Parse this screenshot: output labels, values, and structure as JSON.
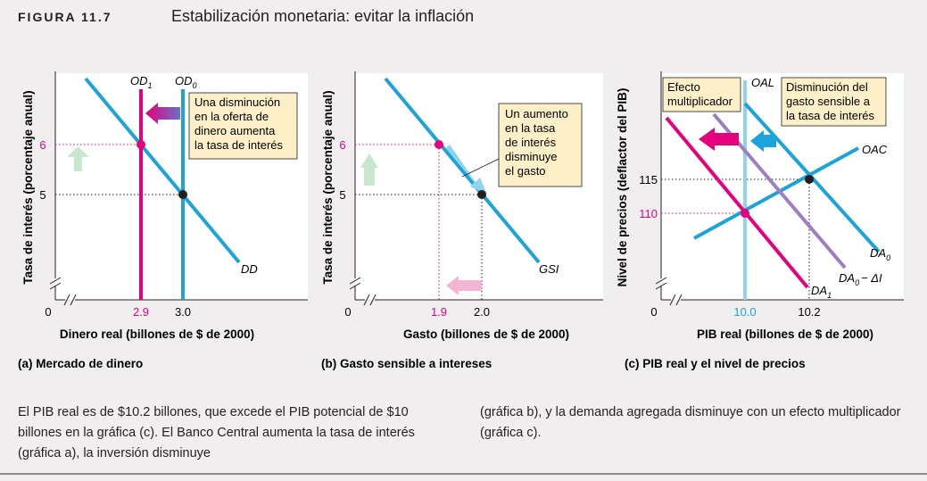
{
  "figure": {
    "label": "FIGURA 11.7",
    "title": "Estabilización monetaria: evitar la inflación"
  },
  "caption_left": "El PIB real es de $10.2 billones, que excede el PIB potencial de $10 billones en la gráfica (c). El Banco Central aumenta la tasa de interés (gráfica a), la inversión disminuye",
  "caption_right": "(gráfica b), y la demanda agregada disminuye con un efecto multiplicador (gráfica c).",
  "colors": {
    "blue": "#1ba3dc",
    "magenta": "#e5007e",
    "purple": "#9b7fc0",
    "light_blue": "#8fd3ef",
    "green_arrow": "#c9e7cf",
    "pink_arrow": "#f4b4d4",
    "callout_fill": "#fdf0c8",
    "point_black": "#231f20"
  },
  "chart_data": [
    {
      "type": "line",
      "panel_label": "(a) Mercado de dinero",
      "xlabel": "Dinero real (billones de $ de 2000)",
      "ylabel": "Tasa de interés (porcentaje anual)",
      "axis_break": true,
      "origin_label": "0",
      "x_ticks": [
        "2.9",
        "3.0"
      ],
      "y_ticks": [
        "6",
        "5"
      ],
      "series": [
        {
          "name": "DD",
          "points": [
            [
              2.88,
              8.6
            ],
            [
              3.15,
              1.8
            ]
          ]
        },
        {
          "name": "OD1",
          "label": "OD",
          "subscript": "1",
          "x": 2.9
        },
        {
          "name": "OD0",
          "label": "OD",
          "subscript": "0",
          "x": 3.0
        }
      ],
      "highlighted_points": [
        {
          "x": 2.9,
          "y": 6,
          "color": "magenta"
        },
        {
          "x": 3.0,
          "y": 5,
          "color": "black"
        }
      ],
      "annotation": "Una disminución en la oferta de dinero aumenta la tasa de interés"
    },
    {
      "type": "line",
      "panel_label": "(b) Gasto sensible a intereses",
      "xlabel": "Gasto (billones de $ de 2000)",
      "ylabel": "Tasa de interés (porcentaje anual)",
      "axis_break": true,
      "origin_label": "0",
      "x_ticks": [
        "1.9",
        "2.0"
      ],
      "y_ticks": [
        "6",
        "5"
      ],
      "series": [
        {
          "name": "GSI",
          "points": [
            [
              1.65,
              8.6
            ],
            [
              2.35,
              2.0
            ]
          ]
        }
      ],
      "highlighted_points": [
        {
          "x": 1.9,
          "y": 6,
          "color": "magenta"
        },
        {
          "x": 2.0,
          "y": 5,
          "color": "black"
        }
      ],
      "annotation": "Un aumento en la tasa de interés disminuye el gasto"
    },
    {
      "type": "line",
      "panel_label": "(c) PIB real y el nivel de precios",
      "xlabel": "PIB real (billones de $ de 2000)",
      "ylabel": "Nivel de precios (deflactor del PIB)",
      "axis_break": true,
      "origin_label": "0",
      "x_ticks": [
        "10.0",
        "10.2"
      ],
      "y_ticks": [
        "115",
        "110"
      ],
      "series": [
        {
          "name": "OAL",
          "x": 10.0
        },
        {
          "name": "OAC",
          "points": [
            [
              9.95,
              104
            ],
            [
              10.4,
              121
            ]
          ]
        },
        {
          "name": "DA0",
          "label": "DA",
          "subscript": "0",
          "points": [
            [
              10.0,
              135
            ],
            [
              10.35,
              103
            ]
          ]
        },
        {
          "name": "DA0 − ΔI",
          "label": "DA",
          "subscript": "0",
          "suffix": "− ΔI",
          "points": [
            [
              9.98,
              131
            ],
            [
              10.3,
              98
            ]
          ]
        },
        {
          "name": "DA1",
          "label": "DA",
          "subscript": "1",
          "points": [
            [
              9.88,
              126
            ],
            [
              10.2,
              94
            ]
          ]
        }
      ],
      "highlighted_points": [
        {
          "x": 10.0,
          "y": 110,
          "color": "magenta"
        },
        {
          "x": 10.2,
          "y": 115,
          "color": "black"
        }
      ],
      "annotations": [
        "Efecto multiplicador",
        "Disminución del gasto sensible a la tasa de interés"
      ]
    }
  ]
}
